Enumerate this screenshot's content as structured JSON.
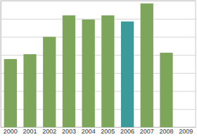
{
  "chart_data": {
    "type": "bar",
    "categories": [
      "2000",
      "2001",
      "2002",
      "2003",
      "2004",
      "2005",
      "2006",
      "2007",
      "2008",
      "2009"
    ],
    "values": [
      3.77,
      4.04,
      5.0,
      6.19,
      5.96,
      6.19,
      5.85,
      6.85,
      4.12,
      null
    ],
    "colors": [
      "#7ea65b",
      "#7ea65b",
      "#7ea65b",
      "#7ea65b",
      "#7ea65b",
      "#7ea65b",
      "#3a9b9a",
      "#7ea65b",
      "#7ea65b",
      "#7ea65b"
    ],
    "ylim": [
      0,
      7
    ],
    "yticks": [
      0,
      1,
      2,
      3,
      4,
      5,
      6,
      7
    ],
    "grid": true,
    "tick_labels": "x"
  }
}
